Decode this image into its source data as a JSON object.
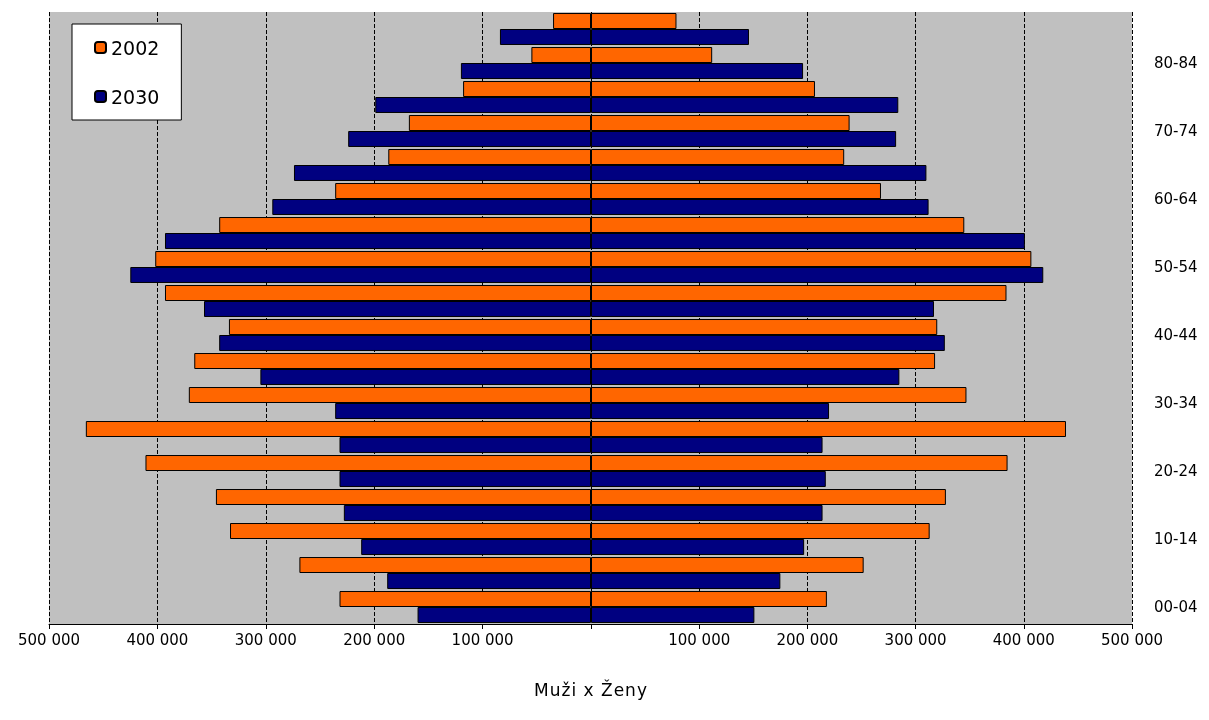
{
  "chart_data": [
    {
      "type": "bar",
      "orientation": "horizontal",
      "xlabel": "Muži x Ženy",
      "tick_labels": "x",
      "legend": "top left",
      "categories": [
        null,
        null,
        null,
        null,
        null,
        null,
        null,
        null,
        null,
        null,
        null,
        null,
        null,
        null,
        null,
        null,
        null,
        null
      ],
      "series": [
        {
          "name": "2002",
          "color": "#ff6600",
          "values": [
            35000,
            55000,
            118000,
            168000,
            187000,
            236000,
            343000,
            402000,
            393000,
            334000,
            366000,
            371000,
            466000,
            411000,
            346000,
            333000,
            269000,
            232000
          ]
        },
        {
          "name": "2030",
          "color": "#000080",
          "values": [
            84000,
            120000,
            199000,
            224000,
            274000,
            294000,
            393000,
            425000,
            357000,
            343000,
            305000,
            236000,
            232000,
            232000,
            228000,
            212000,
            188000,
            160000
          ]
        }
      ],
      "xlim": [
        500000,
        0
      ],
      "xticks": [
        {
          "value": 500000,
          "label": "500 000"
        },
        {
          "value": 400000,
          "label": "400 000"
        },
        {
          "value": 300000,
          "label": "300 000"
        },
        {
          "value": 200000,
          "label": "200 000"
        },
        {
          "value": 100000,
          "label": "100 000"
        },
        {
          "value": 0,
          "label": null
        }
      ],
      "grid": "x"
    },
    {
      "type": "bar",
      "orientation": "horizontal",
      "categories": [
        null,
        "80-84",
        null,
        "70-74",
        null,
        "60-64",
        null,
        "50-54",
        null,
        "40-44",
        null,
        "30-34",
        null,
        "20-24",
        null,
        "10-14",
        null,
        "00-04"
      ],
      "series": [
        {
          "color": "#ff6600",
          "values": [
            79000,
            112000,
            207000,
            239000,
            234000,
            268000,
            345000,
            407000,
            384000,
            320000,
            318000,
            347000,
            439000,
            385000,
            328000,
            313000,
            252000,
            218000
          ]
        },
        {
          "color": "#000080",
          "values": [
            146000,
            196000,
            284000,
            282000,
            310000,
            312000,
            401000,
            418000,
            317000,
            327000,
            285000,
            220000,
            214000,
            217000,
            214000,
            197000,
            175000,
            151000
          ]
        }
      ],
      "xlim": [
        0,
        500000
      ],
      "xticks": [
        {
          "value": 0,
          "label": null
        },
        {
          "value": 100000,
          "label": "100 000"
        },
        {
          "value": 200000,
          "label": "200 000"
        },
        {
          "value": 300000,
          "label": "300 000"
        },
        {
          "value": 400000,
          "label": "400 000"
        },
        {
          "value": 500000,
          "label": "500 000"
        }
      ],
      "grid": "x"
    }
  ]
}
